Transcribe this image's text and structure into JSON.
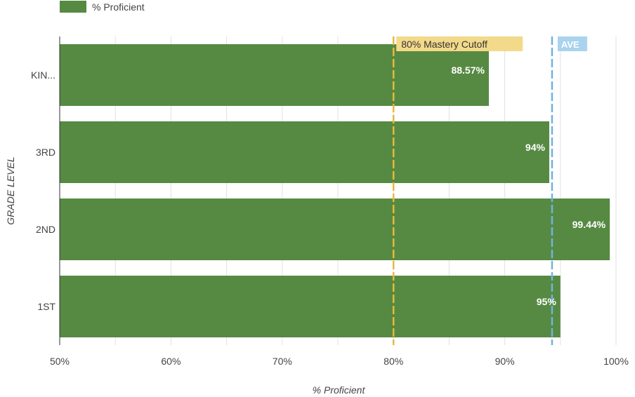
{
  "chart_data": {
    "type": "bar",
    "orientation": "horizontal",
    "categories": [
      "KIN...",
      "3RD",
      "2ND",
      "1ST"
    ],
    "series": [
      {
        "name": "% Proficient",
        "values": [
          88.57,
          94,
          99.44,
          95
        ],
        "data_labels": [
          "88.57%",
          "94%",
          "99.44%",
          "95%"
        ]
      }
    ],
    "xlabel": "% Proficient",
    "ylabel": "GRADE LEVEL",
    "xlim": [
      50,
      100
    ],
    "x_ticks": [
      50,
      60,
      70,
      80,
      90,
      100
    ],
    "x_tick_labels": [
      "50%",
      "60%",
      "70%",
      "80%",
      "90%",
      "100%"
    ],
    "grid": true,
    "legend": {
      "position": "top-left",
      "entries": [
        "% Proficient"
      ]
    },
    "reference_lines": [
      {
        "label": "80% Mastery Cutoff",
        "value": 80,
        "color": "#e8b83a",
        "label_bg": "#f3d98a",
        "style": "dashed"
      },
      {
        "label": "AVE",
        "value": 94.25,
        "color": "#6fb3e0",
        "label_bg": "#a9d3ef",
        "style": "dashed"
      }
    ],
    "colors": {
      "bar": "#568a42",
      "grid": "#e0e0e0",
      "axis": "#333333"
    }
  }
}
